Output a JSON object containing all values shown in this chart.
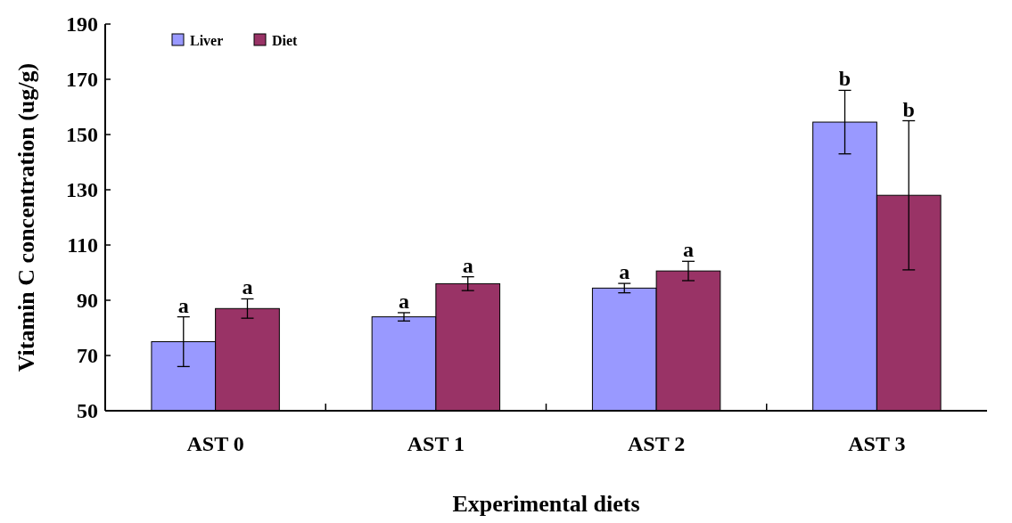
{
  "chart_data": {
    "type": "bar",
    "xlabel": "Experimental diets",
    "ylabel": "Vitamin C concentration (ug/g)",
    "categories": [
      "AST 0",
      "AST 1",
      "AST 2",
      "AST 3"
    ],
    "series": [
      {
        "name": "Liver",
        "color": "#9999ff",
        "values": [
          75,
          84,
          94.4,
          154.5
        ],
        "errors": [
          9,
          1.5,
          1.7,
          11.5
        ]
      },
      {
        "name": "Diet",
        "color": "#993366",
        "values": [
          87,
          96,
          100.6,
          128
        ],
        "errors": [
          3.5,
          2.5,
          3.5,
          27
        ]
      }
    ],
    "ylim": [
      50,
      190
    ],
    "yticks": [
      50,
      70,
      90,
      110,
      130,
      150,
      170,
      190
    ],
    "grid": false,
    "legend": "top left",
    "annotations": [
      "a",
      "a",
      "a",
      "a",
      "a",
      "a",
      "b",
      "b"
    ]
  }
}
